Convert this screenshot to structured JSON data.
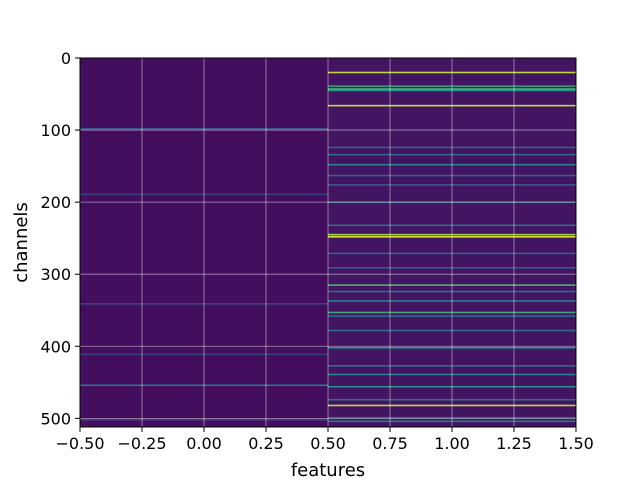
{
  "chart_data": {
    "type": "heatmap",
    "title": "",
    "xlabel": "features",
    "ylabel": "channels",
    "xlim": [
      -0.5,
      1.5
    ],
    "ylim": [
      512,
      0
    ],
    "y_inverted": true,
    "grid": true,
    "colormap": "viridis",
    "x_ticks": [
      -0.5,
      -0.25,
      0.0,
      0.25,
      0.5,
      0.75,
      1.0,
      1.25,
      1.5
    ],
    "x_tick_labels": [
      "−0.50",
      "−0.25",
      "0.00",
      "0.25",
      "0.50",
      "0.75",
      "1.00",
      "1.25",
      "1.50"
    ],
    "y_ticks": [
      0,
      100,
      200,
      300,
      400,
      500
    ],
    "y_tick_labels": [
      "0",
      "100",
      "200",
      "300",
      "400",
      "500"
    ],
    "columns": [
      {
        "feature": 0,
        "base_value": 0.04,
        "highlighted_channels": [
          {
            "channel": 97,
            "value": 0.25
          },
          {
            "channel": 188,
            "value": 0.2
          },
          {
            "channel": 340,
            "value": 0.2
          },
          {
            "channel": 410,
            "value": 0.2
          },
          {
            "channel": 453,
            "value": 0.4
          },
          {
            "channel": 501,
            "value": 0.2
          }
        ]
      },
      {
        "feature": 1,
        "base_value": 0.06,
        "highlighted_channels": [
          {
            "channel": 19,
            "value": 0.9
          },
          {
            "channel": 38,
            "value": 0.55
          },
          {
            "channel": 42,
            "value": 0.7
          },
          {
            "channel": 44,
            "value": 0.5
          },
          {
            "channel": 65,
            "value": 0.9
          },
          {
            "channel": 123,
            "value": 0.3
          },
          {
            "channel": 133,
            "value": 0.35
          },
          {
            "channel": 147,
            "value": 0.45
          },
          {
            "channel": 162,
            "value": 0.3
          },
          {
            "channel": 175,
            "value": 0.3
          },
          {
            "channel": 199,
            "value": 0.35
          },
          {
            "channel": 231,
            "value": 0.35
          },
          {
            "channel": 244,
            "value": 0.85
          },
          {
            "channel": 247,
            "value": 0.95
          },
          {
            "channel": 270,
            "value": 0.3
          },
          {
            "channel": 290,
            "value": 0.3
          },
          {
            "channel": 314,
            "value": 0.65
          },
          {
            "channel": 323,
            "value": 0.35
          },
          {
            "channel": 336,
            "value": 0.45
          },
          {
            "channel": 352,
            "value": 0.6
          },
          {
            "channel": 357,
            "value": 0.35
          },
          {
            "channel": 377,
            "value": 0.35
          },
          {
            "channel": 401,
            "value": 0.5
          },
          {
            "channel": 426,
            "value": 0.35
          },
          {
            "channel": 438,
            "value": 0.45
          },
          {
            "channel": 455,
            "value": 0.5
          },
          {
            "channel": 473,
            "value": 0.35
          },
          {
            "channel": 481,
            "value": 0.9
          },
          {
            "channel": 498,
            "value": 0.35
          },
          {
            "channel": 503,
            "value": 0.4
          }
        ]
      }
    ]
  }
}
